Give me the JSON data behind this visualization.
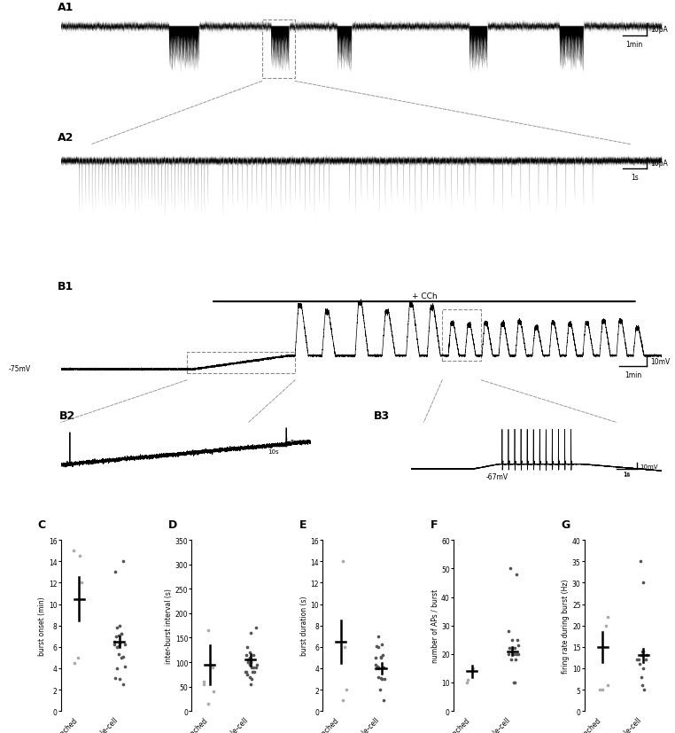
{
  "background_color": "#ffffff",
  "scatter_C": {
    "cell_attached_dots": [
      12.0,
      15.0,
      14.5,
      5.0,
      4.5
    ],
    "whole_cell_dots": [
      7.0,
      7.2,
      6.0,
      6.5,
      6.2,
      7.1,
      5.0,
      5.3,
      6.1,
      8.0,
      7.8,
      7.2,
      6.3,
      13.0,
      14.0,
      3.0,
      4.2,
      5.1,
      4.0,
      6.2,
      2.5,
      3.1
    ],
    "cell_attached_mean": 10.5,
    "cell_attached_err": 2.0,
    "whole_cell_mean": 6.5,
    "whole_cell_err": 0.5,
    "ylabel": "burst onset (min)",
    "ylim": [
      0,
      16
    ],
    "yticks": [
      0,
      2,
      4,
      6,
      8,
      10,
      12,
      14,
      16
    ]
  },
  "scatter_D": {
    "cell_attached_dots": [
      90,
      165,
      55,
      40,
      60,
      15
    ],
    "whole_cell_dots": [
      100,
      110,
      90,
      130,
      80,
      160,
      90,
      100,
      80,
      70,
      100,
      115,
      90,
      95,
      120,
      170,
      105,
      80,
      75,
      115,
      95,
      80,
      65,
      55,
      100
    ],
    "cell_attached_mean": 95,
    "cell_attached_err": 40,
    "whole_cell_mean": 105,
    "whole_cell_err": 12,
    "ylabel": "inter-burst interval (s)",
    "ylim": [
      0,
      350
    ],
    "yticks": [
      0,
      50,
      100,
      150,
      200,
      250,
      300,
      350
    ]
  },
  "scatter_E": {
    "cell_attached_dots": [
      14.0,
      6.0,
      2.0,
      1.0
    ],
    "whole_cell_dots": [
      7.0,
      6.0,
      5.0,
      4.0,
      4.2,
      3.0,
      4.1,
      5.1,
      6.2,
      6.1,
      5.2,
      4.3,
      5.0,
      3.1,
      4.0,
      3.2,
      4.1,
      1.0,
      2.0,
      3.0
    ],
    "cell_attached_mean": 6.5,
    "cell_attached_err": 2.0,
    "whole_cell_mean": 4.0,
    "whole_cell_err": 0.5,
    "ylabel": "burst duration (s)",
    "ylim": [
      0,
      16
    ],
    "yticks": [
      0,
      2,
      4,
      6,
      8,
      10,
      12,
      14,
      16
    ]
  },
  "scatter_F": {
    "cell_attached_dots": [
      15,
      11,
      10
    ],
    "whole_cell_dots": [
      22,
      22,
      20,
      25,
      50,
      48,
      20,
      18,
      20,
      22,
      23,
      25,
      28,
      20,
      18,
      10,
      10
    ],
    "cell_attached_mean": 14,
    "cell_attached_err": 2,
    "whole_cell_mean": 21,
    "whole_cell_err": 1.5,
    "ylabel": "number of APs / burst",
    "ylim": [
      0,
      60
    ],
    "yticks": [
      0,
      10,
      20,
      30,
      40,
      50,
      60
    ]
  },
  "scatter_G": {
    "cell_attached_dots": [
      22,
      20,
      5,
      5,
      6
    ],
    "whole_cell_dots": [
      14,
      13,
      11,
      12,
      8,
      6,
      5,
      35,
      30,
      12,
      13,
      14,
      12,
      10
    ],
    "cell_attached_mean": 15,
    "cell_attached_err": 3.5,
    "whole_cell_mean": 13,
    "whole_cell_err": 1.5,
    "ylabel": "firing rate during burst (Hz)",
    "ylim": [
      0,
      40
    ],
    "yticks": [
      0,
      5,
      10,
      15,
      20,
      25,
      30,
      35,
      40
    ]
  },
  "light_dot_color": "#aaaaaa",
  "dark_dot_color": "#555555"
}
